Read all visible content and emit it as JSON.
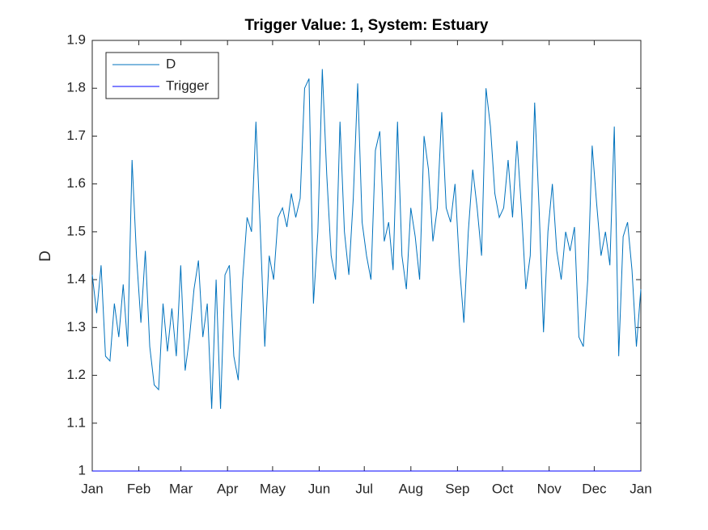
{
  "chart_data": {
    "type": "line",
    "title": "Trigger Value: 1, System: Estuary",
    "y_label": "D",
    "xlim": [
      0,
      365
    ],
    "xticks": [
      {
        "value": 0,
        "label": "Jan"
      },
      {
        "value": 31,
        "label": "Feb"
      },
      {
        "value": 59,
        "label": "Mar"
      },
      {
        "value": 90,
        "label": "Apr"
      },
      {
        "value": 120,
        "label": "May"
      },
      {
        "value": 151,
        "label": "Jun"
      },
      {
        "value": 181,
        "label": "Jul"
      },
      {
        "value": 212,
        "label": "Aug"
      },
      {
        "value": 243,
        "label": "Sep"
      },
      {
        "value": 273,
        "label": "Oct"
      },
      {
        "value": 304,
        "label": "Nov"
      },
      {
        "value": 334,
        "label": "Dec"
      },
      {
        "value": 365,
        "label": "Jan"
      }
    ],
    "ylim": [
      1,
      1.9
    ],
    "yticks": [
      1,
      1.1,
      1.2,
      1.3,
      1.4,
      1.5,
      1.6,
      1.7,
      1.8,
      1.9
    ],
    "legend": "upper-left",
    "series": [
      {
        "name": "D",
        "color": "#0072bd",
        "values": [
          1.41,
          1.33,
          1.43,
          1.24,
          1.23,
          1.35,
          1.28,
          1.39,
          1.26,
          1.65,
          1.45,
          1.31,
          1.46,
          1.26,
          1.18,
          1.17,
          1.35,
          1.25,
          1.34,
          1.24,
          1.43,
          1.21,
          1.28,
          1.38,
          1.44,
          1.28,
          1.35,
          1.13,
          1.4,
          1.13,
          1.41,
          1.43,
          1.24,
          1.19,
          1.4,
          1.53,
          1.5,
          1.73,
          1.5,
          1.26,
          1.45,
          1.4,
          1.53,
          1.55,
          1.51,
          1.58,
          1.53,
          1.57,
          1.8,
          1.82,
          1.35,
          1.5,
          1.84,
          1.62,
          1.45,
          1.4,
          1.73,
          1.5,
          1.41,
          1.57,
          1.81,
          1.52,
          1.45,
          1.4,
          1.67,
          1.71,
          1.48,
          1.52,
          1.42,
          1.73,
          1.45,
          1.38,
          1.55,
          1.49,
          1.4,
          1.7,
          1.63,
          1.48,
          1.55,
          1.75,
          1.55,
          1.52,
          1.6,
          1.43,
          1.31,
          1.5,
          1.63,
          1.55,
          1.45,
          1.8,
          1.72,
          1.58,
          1.53,
          1.55,
          1.65,
          1.53,
          1.69,
          1.55,
          1.38,
          1.45,
          1.77,
          1.55,
          1.29,
          1.5,
          1.6,
          1.46,
          1.4,
          1.5,
          1.46,
          1.51,
          1.28,
          1.26,
          1.4,
          1.68,
          1.56,
          1.45,
          1.5,
          1.43,
          1.72,
          1.24,
          1.49,
          1.52,
          1.42,
          1.26,
          1.38
        ]
      },
      {
        "name": "Trigger",
        "color": "#0000ff",
        "values": [
          1,
          1
        ]
      }
    ]
  }
}
